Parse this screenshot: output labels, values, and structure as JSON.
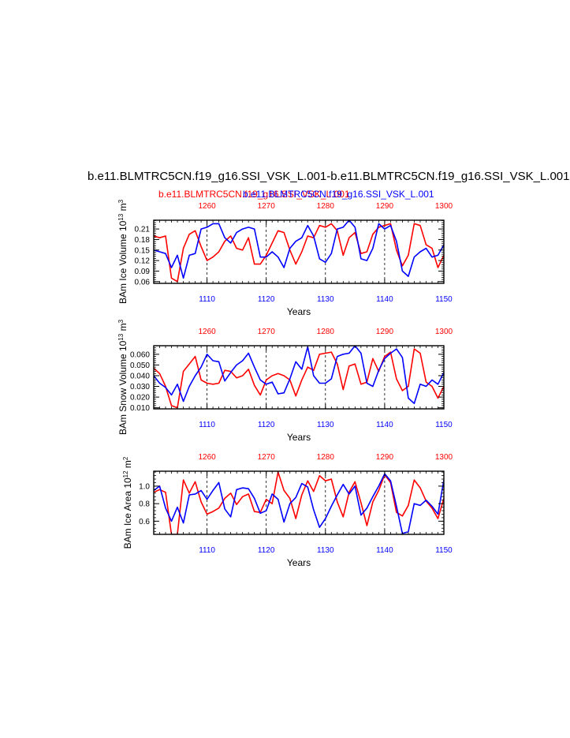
{
  "title": "b.e11.BLMTRC5CN.f19_g16.SSI_VSK_L.001-b.e11.BLMTRC5CN.f19_g16.SSI_VSK_L.001",
  "subtitle_red": "b.e11.BLMTRC5CN.f19_g16.SSI_VSK_L.001",
  "subtitle_blue": "b.e11.BLMTRC5CN.f19_g16.SSI_VSK_L.001",
  "colors": {
    "red_series": "#ff0000",
    "blue_series": "#0000ff",
    "axis": "#000000"
  },
  "chart_data": [
    {
      "type": "line",
      "ylabel": "BAm Ice Volume 10<sup>13</sup> m<sup>3</sup>",
      "xlabel": "Years",
      "xlim_bottom": [
        1101,
        1150
      ],
      "xlim_top": [
        1251,
        1300
      ],
      "xticks_bottom": [
        1110,
        1120,
        1130,
        1140,
        1150
      ],
      "xticks_top": [
        1260,
        1270,
        1280,
        1290,
        1300
      ],
      "ylim": [
        0.055,
        0.235
      ],
      "yticks": [
        0.06,
        0.09,
        0.12,
        0.15,
        0.18,
        0.21
      ],
      "ytick_labels": [
        "0.06",
        "0.09",
        "0.12",
        "0.15",
        "0.18",
        "0.21"
      ],
      "grid": "dashed vertical lines at x ticks",
      "series": [
        {
          "name": "b.e11.BLMTRC5CN.f19_g16.SSI_VSK_L.001",
          "axis": "top",
          "color": "red",
          "x": [
            1251,
            1252,
            1253,
            1254,
            1255,
            1256,
            1257,
            1258,
            1259,
            1260,
            1261,
            1262,
            1263,
            1264,
            1265,
            1266,
            1267,
            1268,
            1269,
            1270,
            1271,
            1272,
            1273,
            1274,
            1275,
            1276,
            1277,
            1278,
            1279,
            1280,
            1281,
            1282,
            1283,
            1284,
            1285,
            1286,
            1287,
            1288,
            1289,
            1290,
            1291,
            1292,
            1293,
            1294,
            1295,
            1296,
            1297,
            1298,
            1299,
            1300
          ],
          "values": [
            0.19,
            0.185,
            0.19,
            0.07,
            0.06,
            0.155,
            0.195,
            0.205,
            0.16,
            0.12,
            0.13,
            0.145,
            0.175,
            0.19,
            0.155,
            0.15,
            0.185,
            0.11,
            0.11,
            0.135,
            0.17,
            0.205,
            0.2,
            0.15,
            0.11,
            0.145,
            0.19,
            0.185,
            0.22,
            0.215,
            0.225,
            0.205,
            0.135,
            0.185,
            0.2,
            0.14,
            0.145,
            0.195,
            0.215,
            0.22,
            0.225,
            0.15,
            0.105,
            0.135,
            0.225,
            0.22,
            0.165,
            0.155,
            0.1,
            0.135
          ]
        },
        {
          "name": "b.e11.BLMTRC5CN.f19_g16.SSI_VSK_L.001",
          "axis": "bottom",
          "color": "blue",
          "x": [
            1101,
            1102,
            1103,
            1104,
            1105,
            1106,
            1107,
            1108,
            1109,
            1110,
            1111,
            1112,
            1113,
            1114,
            1115,
            1116,
            1117,
            1118,
            1119,
            1120,
            1121,
            1122,
            1123,
            1124,
            1125,
            1126,
            1127,
            1128,
            1129,
            1130,
            1131,
            1132,
            1133,
            1134,
            1135,
            1136,
            1137,
            1138,
            1139,
            1140,
            1141,
            1142,
            1143,
            1144,
            1145,
            1146,
            1147,
            1148,
            1149,
            1150
          ],
          "values": [
            0.15,
            0.145,
            0.14,
            0.1,
            0.135,
            0.07,
            0.135,
            0.14,
            0.21,
            0.215,
            0.225,
            0.225,
            0.185,
            0.17,
            0.2,
            0.21,
            0.215,
            0.21,
            0.13,
            0.13,
            0.145,
            0.13,
            0.1,
            0.155,
            0.175,
            0.185,
            0.22,
            0.19,
            0.125,
            0.115,
            0.14,
            0.21,
            0.215,
            0.235,
            0.215,
            0.125,
            0.12,
            0.155,
            0.225,
            0.21,
            0.22,
            0.175,
            0.09,
            0.075,
            0.13,
            0.145,
            0.155,
            0.13,
            0.135,
            0.165
          ]
        }
      ]
    },
    {
      "type": "line",
      "ylabel": "BAm Snow Volume 10<sup>13</sup> m<sup>3</sup>",
      "xlabel": "Years",
      "xlim_bottom": [
        1101,
        1150
      ],
      "xlim_top": [
        1251,
        1300
      ],
      "xticks_bottom": [
        1110,
        1120,
        1130,
        1140,
        1150
      ],
      "xticks_top": [
        1260,
        1270,
        1280,
        1290,
        1300
      ],
      "ylim": [
        0.009,
        0.068
      ],
      "yticks": [
        0.01,
        0.02,
        0.03,
        0.04,
        0.05,
        0.06
      ],
      "ytick_labels": [
        "0.010",
        "0.020",
        "0.030",
        "0.040",
        "0.050",
        "0.060"
      ],
      "grid": "dashed vertical lines at x ticks",
      "series": [
        {
          "name": "b.e11.BLMTRC5CN.f19_g16.SSI_VSK_L.001",
          "axis": "top",
          "color": "red",
          "x": [
            1251,
            1252,
            1253,
            1254,
            1255,
            1256,
            1257,
            1258,
            1259,
            1260,
            1261,
            1262,
            1263,
            1264,
            1265,
            1266,
            1267,
            1268,
            1269,
            1270,
            1271,
            1272,
            1273,
            1274,
            1275,
            1276,
            1277,
            1278,
            1279,
            1280,
            1281,
            1282,
            1283,
            1284,
            1285,
            1286,
            1287,
            1288,
            1289,
            1290,
            1291,
            1292,
            1293,
            1294,
            1295,
            1296,
            1297,
            1298,
            1299,
            1300
          ],
          "values": [
            0.047,
            0.042,
            0.03,
            0.012,
            0.01,
            0.044,
            0.051,
            0.058,
            0.036,
            0.033,
            0.032,
            0.033,
            0.045,
            0.044,
            0.038,
            0.04,
            0.046,
            0.031,
            0.022,
            0.036,
            0.04,
            0.042,
            0.04,
            0.036,
            0.021,
            0.036,
            0.048,
            0.045,
            0.06,
            0.061,
            0.062,
            0.051,
            0.027,
            0.049,
            0.051,
            0.032,
            0.034,
            0.056,
            0.044,
            0.058,
            0.062,
            0.037,
            0.026,
            0.03,
            0.065,
            0.061,
            0.034,
            0.03,
            0.019,
            0.03
          ]
        },
        {
          "name": "b.e11.BLMTRC5CN.f19_g16.SSI_VSK_L.001",
          "axis": "bottom",
          "color": "blue",
          "x": [
            1101,
            1102,
            1103,
            1104,
            1105,
            1106,
            1107,
            1108,
            1109,
            1110,
            1111,
            1112,
            1113,
            1114,
            1115,
            1116,
            1117,
            1118,
            1119,
            1120,
            1121,
            1122,
            1123,
            1124,
            1125,
            1126,
            1127,
            1128,
            1129,
            1130,
            1131,
            1132,
            1133,
            1134,
            1135,
            1136,
            1137,
            1138,
            1139,
            1140,
            1141,
            1142,
            1143,
            1144,
            1145,
            1146,
            1147,
            1148,
            1149,
            1150
          ],
          "values": [
            0.04,
            0.033,
            0.029,
            0.022,
            0.032,
            0.016,
            0.03,
            0.04,
            0.048,
            0.06,
            0.054,
            0.053,
            0.035,
            0.043,
            0.05,
            0.054,
            0.061,
            0.048,
            0.036,
            0.032,
            0.034,
            0.023,
            0.024,
            0.037,
            0.053,
            0.046,
            0.067,
            0.04,
            0.033,
            0.033,
            0.037,
            0.058,
            0.06,
            0.061,
            0.068,
            0.061,
            0.033,
            0.03,
            0.045,
            0.056,
            0.061,
            0.065,
            0.057,
            0.019,
            0.014,
            0.032,
            0.03,
            0.036,
            0.032,
            0.043
          ]
        }
      ]
    },
    {
      "type": "line",
      "ylabel": "BAm Ice Area 10<sup>12</sup> m<sup>2</sup>",
      "xlabel": "Years",
      "xlim_bottom": [
        1101,
        1150
      ],
      "xlim_top": [
        1251,
        1300
      ],
      "xticks_bottom": [
        1110,
        1120,
        1130,
        1140,
        1150
      ],
      "xticks_top": [
        1260,
        1270,
        1280,
        1290,
        1300
      ],
      "ylim": [
        0.45,
        1.17
      ],
      "yticks": [
        0.6,
        0.8,
        1.0
      ],
      "ytick_labels": [
        "0.6",
        "0.8",
        "1.0"
      ],
      "grid": "dashed vertical lines at x ticks",
      "series": [
        {
          "name": "b.e11.BLMTRC5CN.f19_g16.SSI_VSK_L.001",
          "axis": "top",
          "color": "red",
          "x": [
            1251,
            1252,
            1253,
            1254,
            1255,
            1256,
            1257,
            1258,
            1259,
            1260,
            1261,
            1262,
            1263,
            1264,
            1265,
            1266,
            1267,
            1268,
            1269,
            1270,
            1271,
            1272,
            1273,
            1274,
            1275,
            1276,
            1277,
            1278,
            1279,
            1280,
            1281,
            1282,
            1283,
            1284,
            1285,
            1286,
            1287,
            1288,
            1289,
            1290,
            1291,
            1292,
            1293,
            1294,
            1295,
            1296,
            1297,
            1298,
            1299,
            1300
          ],
          "values": [
            0.93,
            0.96,
            0.93,
            0.45,
            0.45,
            1.07,
            0.92,
            1.05,
            0.82,
            0.68,
            0.71,
            0.75,
            0.86,
            0.92,
            0.79,
            0.88,
            0.91,
            0.71,
            0.7,
            0.85,
            0.8,
            1.16,
            0.95,
            0.86,
            0.63,
            0.9,
            1.06,
            0.94,
            1.12,
            1.06,
            1.08,
            0.82,
            0.65,
            0.93,
            1.05,
            0.81,
            0.55,
            0.82,
            0.95,
            1.13,
            1.04,
            0.7,
            0.66,
            0.78,
            1.07,
            0.98,
            0.83,
            0.75,
            0.63,
            0.86
          ]
        },
        {
          "name": "b.e11.BLMTRC5CN.f19_g16.SSI_VSK_L.001",
          "axis": "bottom",
          "color": "blue",
          "x": [
            1101,
            1102,
            1103,
            1104,
            1105,
            1106,
            1107,
            1108,
            1109,
            1110,
            1111,
            1112,
            1113,
            1114,
            1115,
            1116,
            1117,
            1118,
            1119,
            1120,
            1121,
            1122,
            1123,
            1124,
            1125,
            1126,
            1127,
            1128,
            1129,
            1130,
            1131,
            1132,
            1133,
            1134,
            1135,
            1136,
            1137,
            1138,
            1139,
            1140,
            1141,
            1142,
            1143,
            1144,
            1145,
            1146,
            1147,
            1148,
            1149,
            1150
          ],
          "values": [
            0.95,
            1.0,
            0.75,
            0.6,
            0.76,
            0.58,
            0.9,
            0.91,
            0.95,
            0.85,
            0.95,
            1.04,
            0.74,
            0.65,
            0.96,
            0.98,
            0.97,
            0.86,
            0.69,
            0.72,
            0.91,
            0.85,
            0.59,
            0.8,
            0.87,
            1.03,
            0.99,
            0.73,
            0.53,
            0.63,
            0.77,
            0.9,
            1.02,
            0.91,
            1.0,
            0.67,
            0.75,
            0.88,
            1.0,
            1.14,
            1.06,
            0.77,
            0.46,
            0.48,
            0.8,
            0.78,
            0.84,
            0.77,
            0.68,
            1.07
          ]
        }
      ]
    }
  ]
}
